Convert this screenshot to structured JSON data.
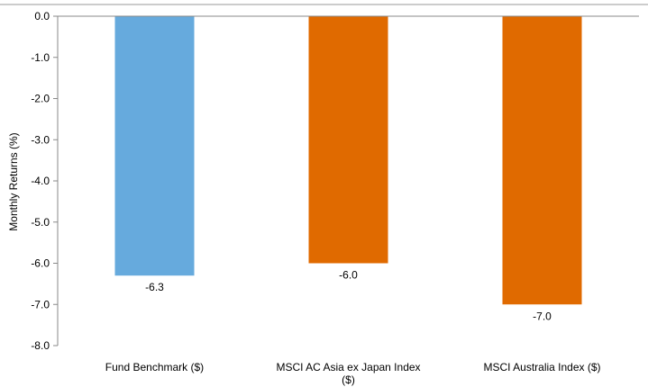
{
  "chart_data": {
    "type": "bar",
    "title": "",
    "xlabel": "",
    "ylabel": "Monthly Returns (%)",
    "ylim": [
      -8.0,
      0.0
    ],
    "yticks": [
      0.0,
      -1.0,
      -2.0,
      -3.0,
      -4.0,
      -5.0,
      -6.0,
      -7.0,
      -8.0
    ],
    "ytick_labels": [
      "0.0",
      "-1.0",
      "-2.0",
      "-3.0",
      "-4.0",
      "-5.0",
      "-6.0",
      "-7.0",
      "-8.0"
    ],
    "categories": [
      [
        "Fund Benchmark ($)"
      ],
      [
        "MSCI AC Asia ex Japan Index",
        "($)"
      ],
      [
        "MSCI Australia Index ($)"
      ]
    ],
    "values": [
      -6.3,
      -6.0,
      -7.0
    ],
    "data_labels": [
      "-6.3",
      "-6.0",
      "-7.0"
    ],
    "colors": [
      "#66AADD",
      "#E06A00",
      "#E06A00"
    ],
    "grid": false,
    "legend": "none"
  }
}
